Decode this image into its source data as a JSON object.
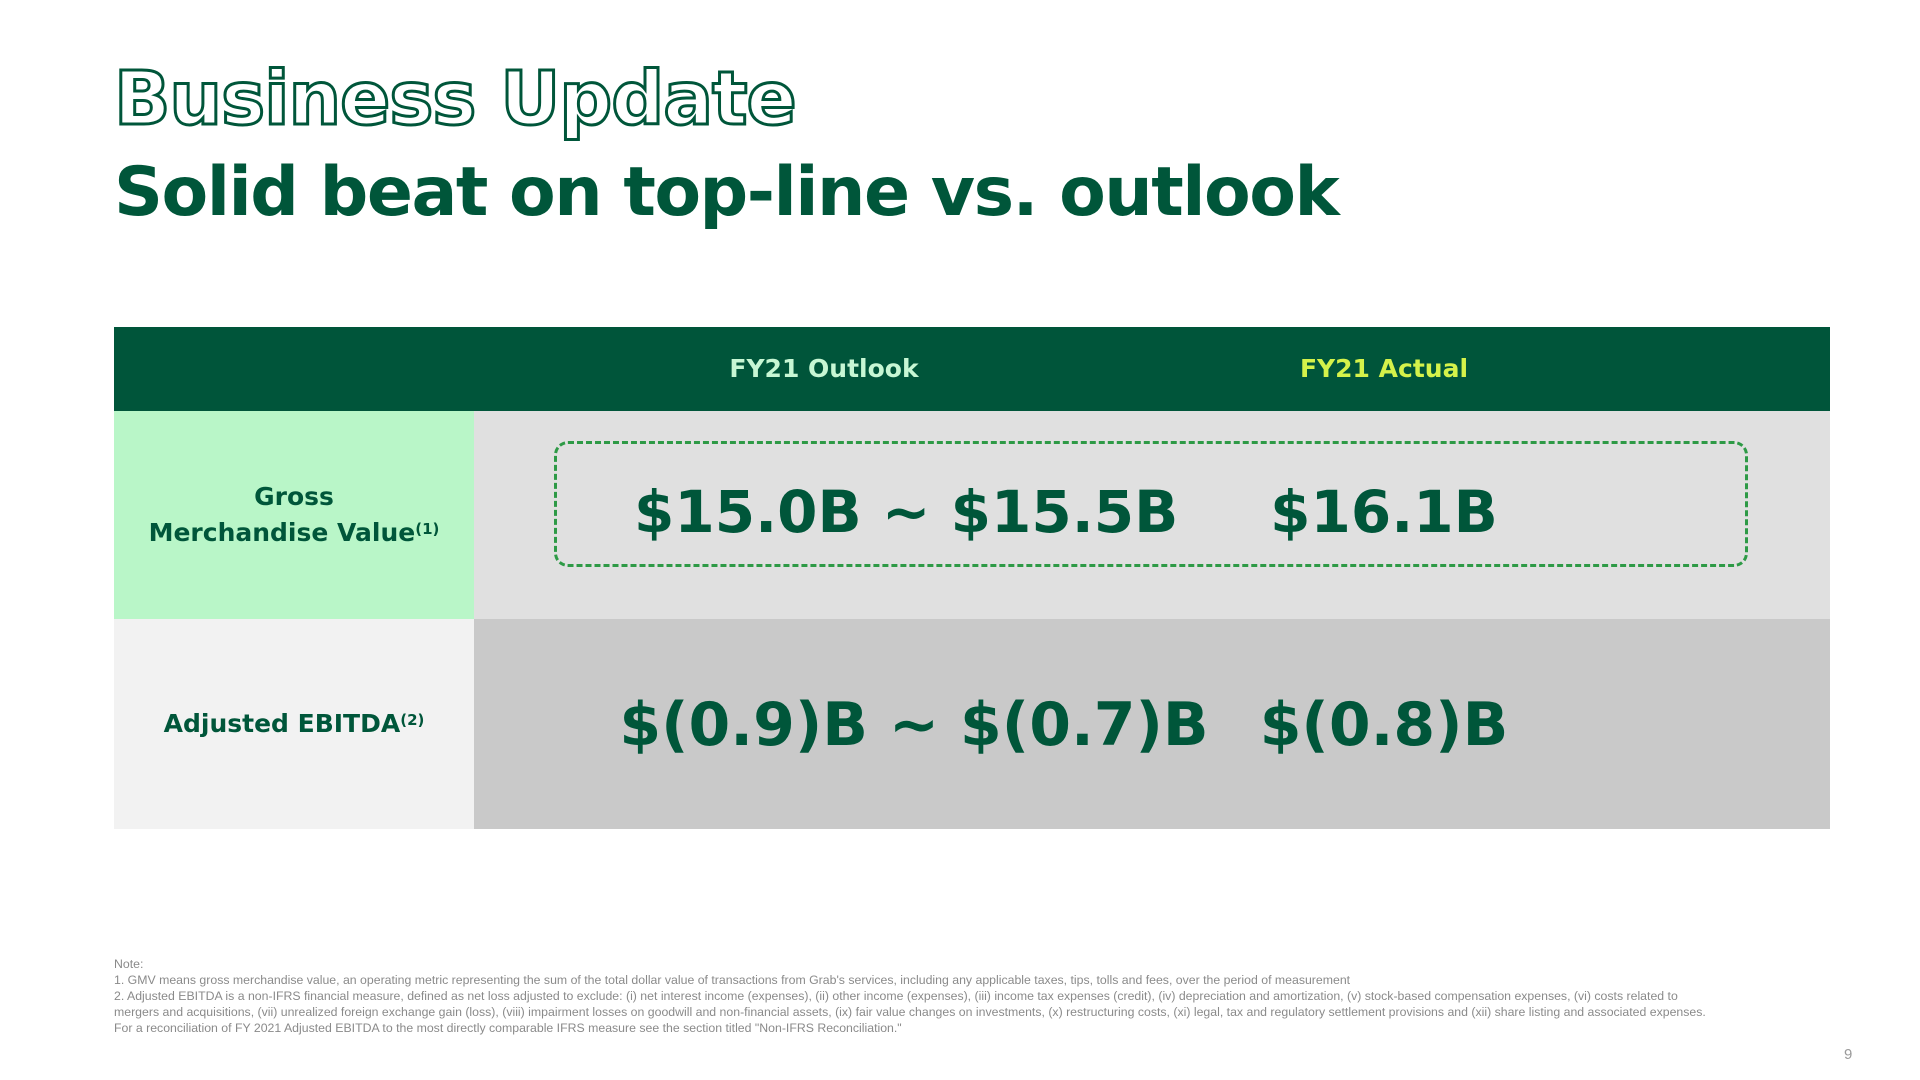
{
  "slide": {
    "title": "Business Update",
    "subtitle": "Solid beat on top-line vs. outlook",
    "page_number": "9"
  },
  "colors": {
    "brand_green": "#00563a",
    "header_bg": "#00553a",
    "outlook_header_text": "#c7f7d4",
    "actual_header_text": "#d5f24a",
    "gmv_label_bg": "#b9f6c8",
    "gmv_value_bg": "#e0e0e0",
    "ebitda_label_bg": "#f2f2f2",
    "ebitda_value_bg": "#c9c9c9",
    "dashed_border": "#2e9a46"
  },
  "table": {
    "headers": {
      "outlook": "FY21 Outlook",
      "actual": "FY21 Actual"
    },
    "rows": [
      {
        "label_line1": "Gross",
        "label_line2": "Merchandise Value",
        "footnote": "(1)",
        "outlook": "$15.0B ~ $15.5B",
        "actual": "$16.1B"
      },
      {
        "label": "Adjusted EBITDA",
        "footnote": "(2)",
        "outlook": "$(0.9)B ~ $(0.7)B",
        "actual": "$(0.8)B"
      }
    ]
  },
  "notes": {
    "heading": "Note:",
    "note1": "1. GMV means gross merchandise value, an operating metric representing the sum of the total dollar value of transactions from Grab's services, including any applicable taxes, tips, tolls and fees, over the period of measurement",
    "note2": "2. Adjusted EBITDA is a non-IFRS financial measure, defined as net loss adjusted to exclude: (i) net interest income (expenses), (ii) other income (expenses), (iii) income tax expenses (credit), (iv) depreciation and amortization, (v) stock-based compensation expenses, (vi) costs related to mergers and acquisitions, (vii) unrealized foreign exchange gain (loss), (viii) impairment losses on goodwill and non-financial assets, (ix) fair value changes on investments, (x) restructuring costs, (xi) legal, tax and regulatory settlement provisions and (xii) share listing and associated expenses. For a reconciliation of FY 2021 Adjusted EBITDA to the most directly comparable IFRS measure see the section titled \"Non-IFRS Reconciliation.\""
  }
}
